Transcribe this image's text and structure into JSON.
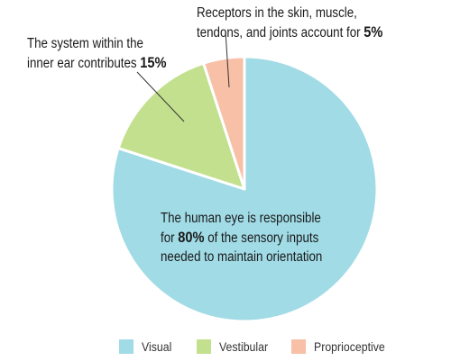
{
  "chart_data": {
    "type": "pie",
    "slices": [
      {
        "label": "Visual",
        "value": 80,
        "color": "#a0dbe6"
      },
      {
        "label": "Vestibular",
        "value": 15,
        "color": "#c2e08e"
      },
      {
        "label": "Proprioceptive",
        "value": 5,
        "color": "#f8c0a6"
      }
    ],
    "start_angle_deg": 0,
    "direction": "clockwise",
    "annotations": {
      "visual": {
        "before": "The human eye is responsible",
        "line2_pre": "for ",
        "value_text": "80%",
        "line2_post": " of the sensory inputs",
        "line3": "needed to maintain orientation"
      },
      "vestibular": {
        "line1": "The system within the",
        "line2_pre": "inner ear contributes ",
        "value_text": "15%"
      },
      "proprioceptive": {
        "line1": "Receptors in the skin, muscle,",
        "line2_pre": "tendons, and joints account for ",
        "value_text": "5%"
      }
    },
    "legend": {
      "placement": "bottom",
      "items": [
        {
          "label": "Visual",
          "color": "#a0dbe6"
        },
        {
          "label": "Vestibular",
          "color": "#c2e08e"
        },
        {
          "label": "Proprioceptive",
          "color": "#f8c0a6"
        }
      ]
    }
  }
}
